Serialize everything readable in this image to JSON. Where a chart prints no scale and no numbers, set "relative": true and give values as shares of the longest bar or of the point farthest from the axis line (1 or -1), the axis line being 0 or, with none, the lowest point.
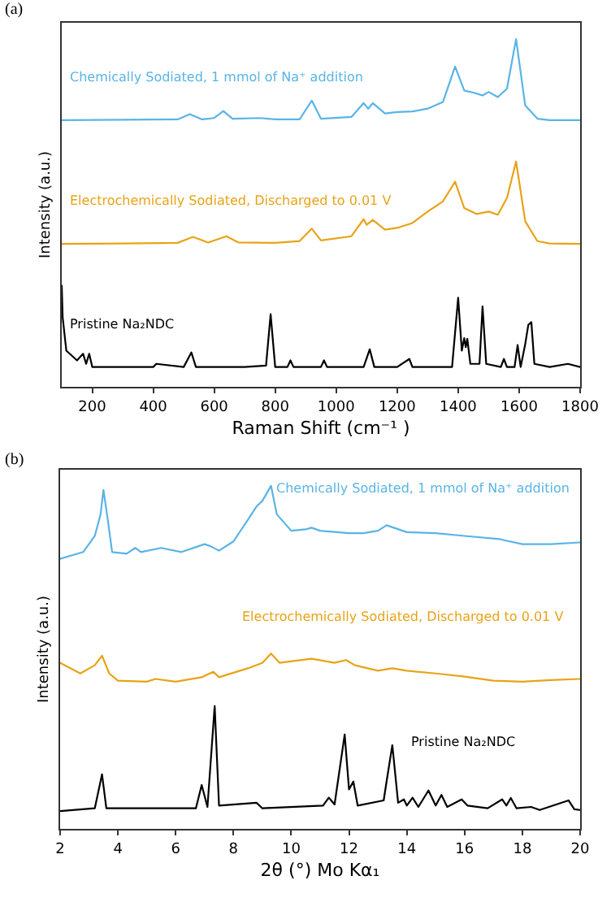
{
  "chart_data": [
    {
      "type": "line",
      "title": "(a)",
      "xlabel": "Raman Shift (cm⁻¹ )",
      "ylabel": "Intensity (a.u.)",
      "relative": true,
      "xlim": [
        100,
        1800
      ],
      "xticks": [
        200,
        400,
        600,
        800,
        1000,
        1200,
        1400,
        1600,
        1800
      ],
      "tick_labels": "x",
      "grid": false,
      "legend": false,
      "series": [
        {
          "name": "Chemically Sodiated, 1 mmol of Na⁺ addition",
          "color": "#5ab4e5",
          "x": [
            100,
            300,
            480,
            520,
            560,
            600,
            630,
            660,
            750,
            800,
            880,
            920,
            950,
            1050,
            1090,
            1105,
            1120,
            1160,
            1200,
            1250,
            1300,
            1350,
            1390,
            1420,
            1450,
            1480,
            1500,
            1530,
            1560,
            1590,
            1620,
            1660,
            1700,
            1800
          ],
          "values": [
            0.767,
            0.768,
            0.769,
            0.784,
            0.769,
            0.773,
            0.793,
            0.771,
            0.773,
            0.769,
            0.769,
            0.823,
            0.771,
            0.776,
            0.816,
            0.8,
            0.816,
            0.786,
            0.79,
            0.792,
            0.8,
            0.819,
            0.921,
            0.852,
            0.846,
            0.838,
            0.848,
            0.833,
            0.857,
            1.0,
            0.809,
            0.771,
            0.767,
            0.767
          ]
        },
        {
          "name": "Electrochemically Sodiated, Discharged to 0.01 V",
          "color": "#e8a317",
          "x": [
            100,
            300,
            480,
            530,
            580,
            640,
            680,
            800,
            880,
            920,
            950,
            1050,
            1090,
            1100,
            1120,
            1160,
            1200,
            1250,
            1300,
            1350,
            1390,
            1420,
            1460,
            1500,
            1530,
            1560,
            1590,
            1620,
            1660,
            1700,
            1800
          ],
          "values": [
            0.411,
            0.412,
            0.414,
            0.431,
            0.415,
            0.433,
            0.415,
            0.414,
            0.419,
            0.455,
            0.421,
            0.433,
            0.482,
            0.466,
            0.48,
            0.452,
            0.457,
            0.471,
            0.504,
            0.533,
            0.59,
            0.514,
            0.497,
            0.504,
            0.495,
            0.543,
            0.648,
            0.476,
            0.419,
            0.412,
            0.411
          ]
        },
        {
          "name": "Pristine Na₂NDC",
          "color": "#000000",
          "x": [
            100,
            103,
            115,
            150,
            170,
            180,
            190,
            200,
            300,
            400,
            410,
            500,
            525,
            540,
            700,
            770,
            785,
            800,
            840,
            850,
            860,
            950,
            960,
            970,
            1090,
            1110,
            1125,
            1200,
            1240,
            1250,
            1380,
            1400,
            1412,
            1420,
            1425,
            1430,
            1440,
            1470,
            1480,
            1492,
            1540,
            1550,
            1560,
            1585,
            1595,
            1605,
            1620,
            1630,
            1640,
            1650,
            1700,
            1760,
            1800
          ],
          "values": [
            0.291,
            0.2,
            0.104,
            0.076,
            0.095,
            0.066,
            0.095,
            0.057,
            0.057,
            0.057,
            0.066,
            0.057,
            0.099,
            0.057,
            0.057,
            0.061,
            0.209,
            0.057,
            0.057,
            0.076,
            0.057,
            0.057,
            0.076,
            0.057,
            0.057,
            0.108,
            0.057,
            0.057,
            0.08,
            0.057,
            0.057,
            0.256,
            0.104,
            0.14,
            0.114,
            0.138,
            0.066,
            0.066,
            0.231,
            0.066,
            0.057,
            0.08,
            0.057,
            0.057,
            0.12,
            0.057,
            0.123,
            0.178,
            0.186,
            0.066,
            0.057,
            0.066,
            0.057
          ]
        }
      ]
    },
    {
      "type": "line",
      "title": "(b)",
      "xlabel": "2θ (°) Mo Kα₁",
      "ylabel": "Intensity (a.u.)",
      "relative": true,
      "xlim": [
        2,
        20
      ],
      "xticks": [
        2,
        4,
        6,
        8,
        10,
        12,
        14,
        16,
        18,
        20
      ],
      "tick_labels": "x",
      "grid": false,
      "legend": false,
      "series": [
        {
          "name": "Chemically Sodiated, 1 mmol of Na⁺ addition",
          "color": "#5ab4e5",
          "x": [
            2,
            2.8,
            3.2,
            3.4,
            3.5,
            3.65,
            3.8,
            4.3,
            4.6,
            4.8,
            5.5,
            6.2,
            7,
            7.2,
            7.5,
            8,
            8.5,
            8.8,
            9,
            9.3,
            9.5,
            10,
            10.5,
            10.7,
            11,
            12,
            12.5,
            13,
            13.3,
            14,
            15,
            16,
            17.2,
            17.4,
            18,
            19,
            20
          ],
          "values": [
            0.787,
            0.807,
            0.854,
            0.917,
            0.988,
            0.901,
            0.807,
            0.802,
            0.819,
            0.807,
            0.819,
            0.807,
            0.83,
            0.824,
            0.811,
            0.838,
            0.901,
            0.94,
            0.956,
            1.0,
            0.917,
            0.869,
            0.873,
            0.878,
            0.869,
            0.862,
            0.862,
            0.869,
            0.885,
            0.865,
            0.862,
            0.854,
            0.845,
            0.841,
            0.83,
            0.83,
            0.835
          ]
        },
        {
          "name": "Electrochemically Sodiated, Discharged to 0.01 V",
          "color": "#e8a317",
          "x": [
            2,
            2.7,
            3.2,
            3.45,
            3.7,
            4,
            5,
            5.3,
            6,
            6.9,
            7.3,
            7.5,
            8.5,
            9,
            9.3,
            9.6,
            10.7,
            11.5,
            11.9,
            12.2,
            13,
            13.5,
            14,
            15,
            16,
            17,
            18,
            19,
            20
          ],
          "values": [
            0.484,
            0.453,
            0.477,
            0.505,
            0.453,
            0.432,
            0.429,
            0.437,
            0.429,
            0.442,
            0.458,
            0.442,
            0.468,
            0.484,
            0.511,
            0.484,
            0.496,
            0.484,
            0.492,
            0.477,
            0.461,
            0.468,
            0.461,
            0.453,
            0.444,
            0.432,
            0.429,
            0.434,
            0.437
          ]
        },
        {
          "name": "Pristine Na₂NDC",
          "color": "#000000",
          "x": [
            2,
            3.2,
            3.45,
            3.6,
            6.7,
            6.9,
            7.1,
            7.35,
            7.5,
            8.8,
            9,
            11.1,
            11.3,
            11.5,
            11.85,
            12,
            12.15,
            12.3,
            13.2,
            13.3,
            13.5,
            13.7,
            13.9,
            14,
            14.2,
            14.4,
            14.75,
            15,
            15.2,
            15.4,
            15.9,
            16.1,
            16.8,
            17.3,
            17.45,
            17.6,
            17.8,
            18.3,
            18.6,
            19.6,
            19.8,
            20
          ],
          "values": [
            0.052,
            0.06,
            0.159,
            0.06,
            0.06,
            0.128,
            0.064,
            0.358,
            0.068,
            0.076,
            0.06,
            0.068,
            0.091,
            0.071,
            0.275,
            0.115,
            0.138,
            0.068,
            0.083,
            0.138,
            0.244,
            0.076,
            0.086,
            0.068,
            0.091,
            0.064,
            0.112,
            0.068,
            0.099,
            0.064,
            0.086,
            0.068,
            0.06,
            0.086,
            0.068,
            0.09,
            0.06,
            0.064,
            0.055,
            0.083,
            0.057,
            0.055
          ]
        }
      ]
    }
  ]
}
